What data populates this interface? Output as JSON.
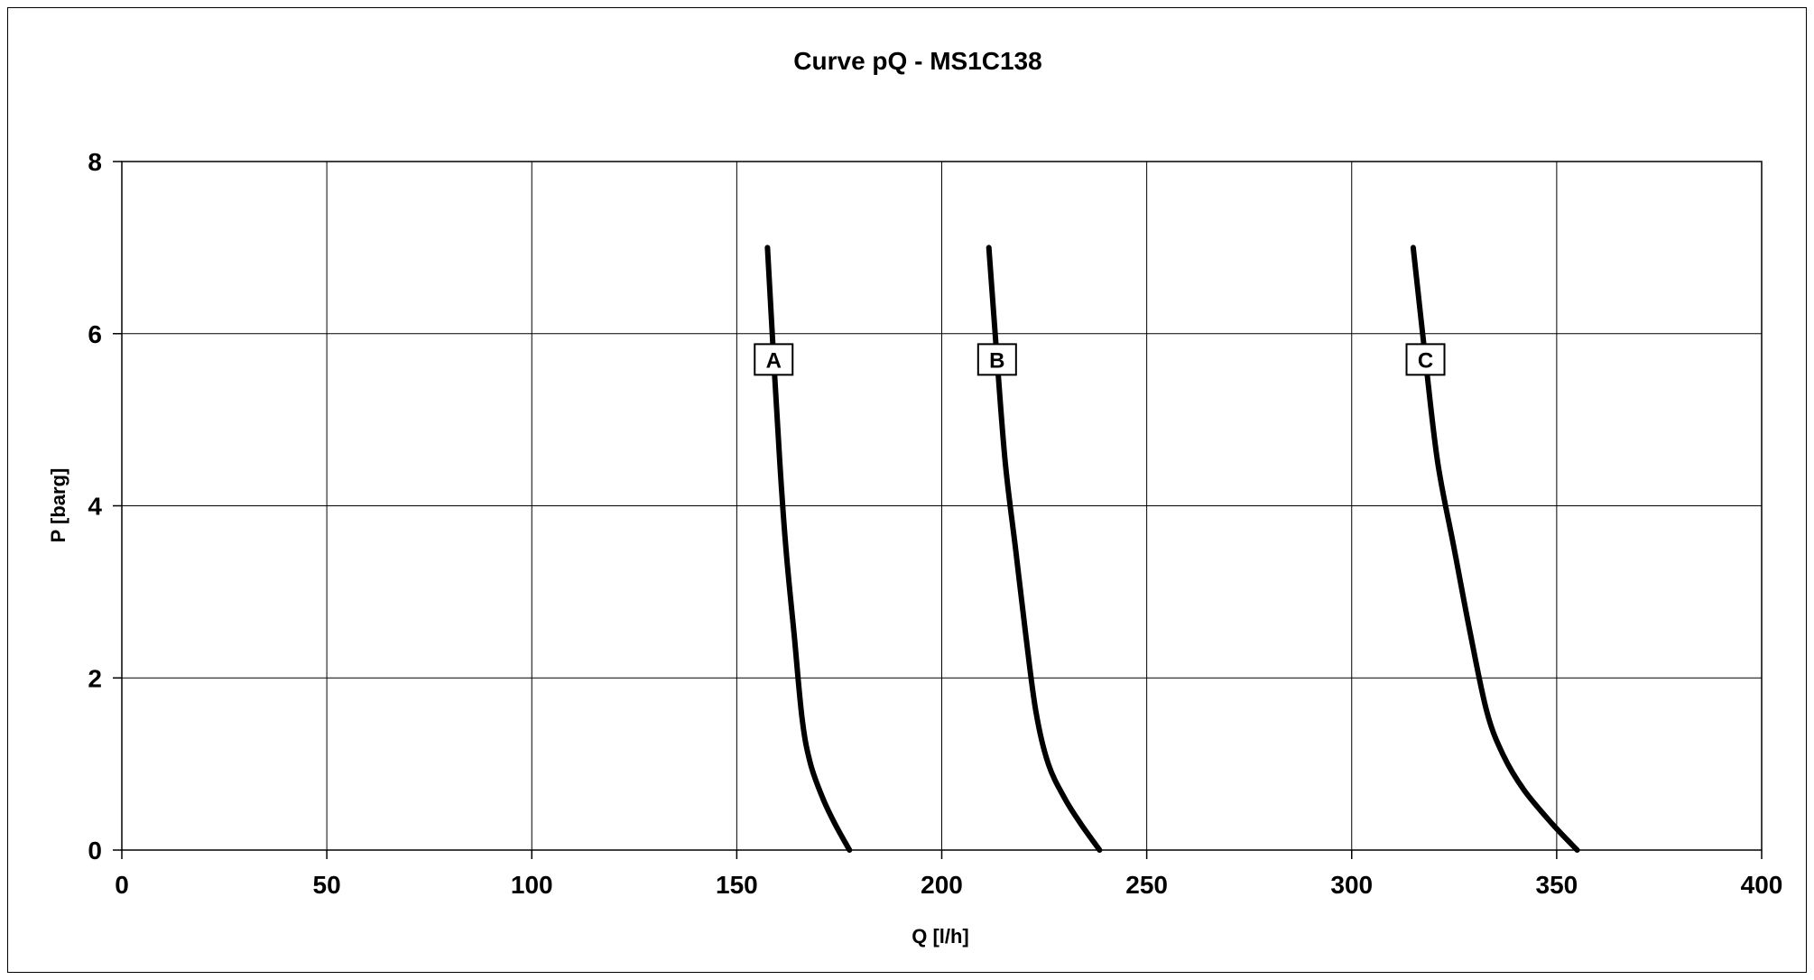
{
  "chart_data": {
    "type": "line",
    "title": "Curve pQ - MS1C138",
    "xlabel": "Q [l/h]",
    "ylabel": "P [barg]",
    "xlim": [
      0,
      400
    ],
    "ylim": [
      0,
      8
    ],
    "xticks": [
      0,
      50,
      100,
      150,
      200,
      250,
      300,
      350,
      400
    ],
    "yticks": [
      0,
      2,
      4,
      6,
      8
    ],
    "grid": true,
    "line_color": "#000000",
    "series": [
      {
        "name": "A",
        "label_at": [
          159,
          5.7
        ],
        "points": [
          [
            157.5,
            7
          ],
          [
            159,
            5.7
          ],
          [
            160.5,
            4.5
          ],
          [
            162,
            3.5
          ],
          [
            164,
            2.5
          ],
          [
            166,
            1.5
          ],
          [
            168,
            1.0
          ],
          [
            171,
            0.6
          ],
          [
            174,
            0.3
          ],
          [
            177.5,
            0
          ]
        ]
      },
      {
        "name": "B",
        "label_at": [
          213.5,
          5.7
        ],
        "points": [
          [
            211.5,
            7
          ],
          [
            213.5,
            5.7
          ],
          [
            215.5,
            4.5
          ],
          [
            218,
            3.5
          ],
          [
            220.5,
            2.5
          ],
          [
            223,
            1.6
          ],
          [
            226,
            1.0
          ],
          [
            230,
            0.6
          ],
          [
            234,
            0.3
          ],
          [
            238.5,
            0
          ]
        ]
      },
      {
        "name": "C",
        "label_at": [
          318,
          5.7
        ],
        "points": [
          [
            315,
            7
          ],
          [
            318,
            5.7
          ],
          [
            321,
            4.5
          ],
          [
            325,
            3.5
          ],
          [
            329,
            2.5
          ],
          [
            333,
            1.6
          ],
          [
            337,
            1.1
          ],
          [
            342,
            0.7
          ],
          [
            349,
            0.3
          ],
          [
            355,
            0
          ]
        ]
      }
    ]
  }
}
